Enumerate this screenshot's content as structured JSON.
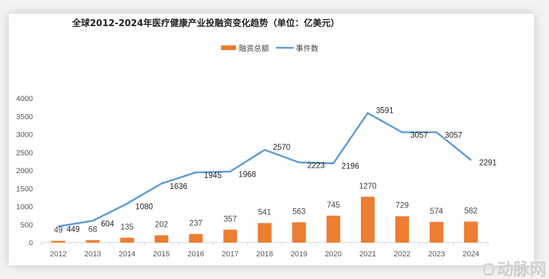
{
  "chart_data": {
    "type": "bar+line",
    "title": "全球2012-2024年医疗健康产业投融资变化趋势（单位：亿美元）",
    "categories": [
      "2012",
      "2013",
      "2014",
      "2015",
      "2016",
      "2017",
      "2018",
      "2019",
      "2020",
      "2021",
      "2022",
      "2023",
      "2024"
    ],
    "series": [
      {
        "name": "融资总额",
        "type": "bar",
        "color": "#ED7D31",
        "values": [
          49,
          68,
          135,
          202,
          237,
          357,
          541,
          563,
          745,
          1270,
          729,
          574,
          582
        ]
      },
      {
        "name": "事件数",
        "type": "line",
        "color": "#5B9BD5",
        "values": [
          449,
          604,
          1080,
          1636,
          1945,
          1968,
          2570,
          2223,
          2196,
          3591,
          3057,
          3057,
          2291
        ]
      }
    ],
    "yticks": [
      "0",
      "500",
      "1000",
      "1500",
      "2000",
      "2500",
      "3000",
      "3500",
      "4000"
    ],
    "ylim": [
      0,
      4000
    ],
    "grid": false,
    "legend": "top-center"
  },
  "watermark": "动脉网"
}
